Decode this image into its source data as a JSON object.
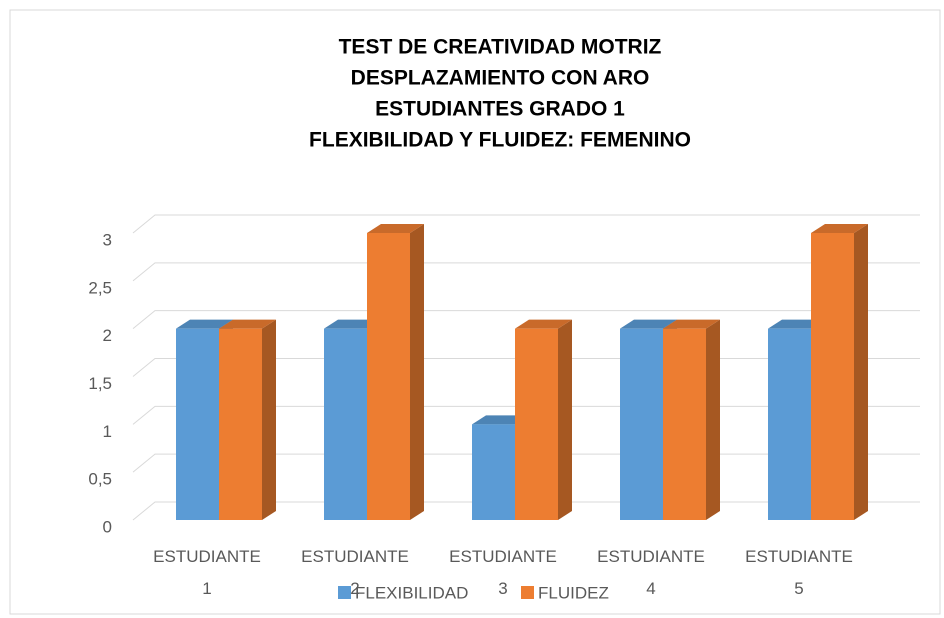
{
  "chart_data": {
    "type": "bar3d",
    "title": [
      "TEST DE CREATIVIDAD MOTRIZ",
      "DESPLAZAMIENTO CON ARO",
      "ESTUDIANTES GRADO 1",
      "FLEXIBILIDAD Y FLUIDEZ: FEMENINO"
    ],
    "categories": [
      "ESTUDIANTE 1",
      "ESTUDIANTE 2",
      "ESTUDIANTE 3",
      "ESTUDIANTE 4",
      "ESTUDIANTE 5"
    ],
    "series": [
      {
        "name": "FLEXIBILIDAD",
        "color": "#5b9bd5",
        "values": [
          2,
          2,
          1,
          2,
          2
        ]
      },
      {
        "name": "FLUIDEZ",
        "color": "#ed7d31",
        "values": [
          2,
          3,
          2,
          2,
          3
        ]
      }
    ],
    "ylim": [
      0,
      3
    ],
    "yticks": [
      0,
      {
        "value": 0.5,
        "label": "0,5"
      },
      1,
      {
        "value": 1.5,
        "label": "1,5"
      },
      2,
      {
        "value": 2.5,
        "label": "2,5"
      },
      3
    ],
    "grid": true,
    "legend": "bottom"
  }
}
